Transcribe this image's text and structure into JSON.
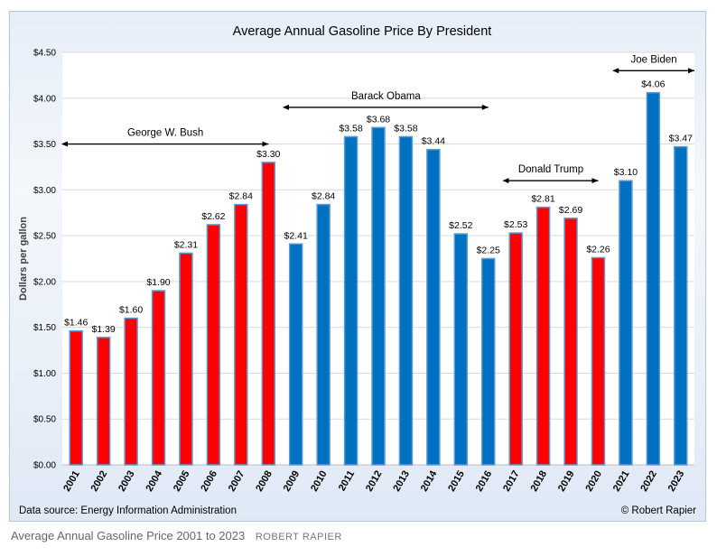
{
  "chart_data": {
    "type": "bar",
    "title": "Average Annual Gasoline Price By President",
    "ylabel": "Dollars per gallon",
    "xlabel": "",
    "ylim": [
      0,
      4.5
    ],
    "y_ticks": [
      "$0.00",
      "$0.50",
      "$1.00",
      "$1.50",
      "$2.00",
      "$2.50",
      "$3.00",
      "$3.50",
      "$4.00",
      "$4.50"
    ],
    "y_tick_values": [
      0,
      0.5,
      1,
      1.5,
      2,
      2.5,
      3,
      3.5,
      4,
      4.5
    ],
    "grid": true,
    "categories": [
      "2001",
      "2002",
      "2003",
      "2004",
      "2005",
      "2006",
      "2007",
      "2008",
      "2009",
      "2010",
      "2011",
      "2012",
      "2013",
      "2014",
      "2015",
      "2016",
      "2017",
      "2018",
      "2019",
      "2020",
      "2021",
      "2022",
      "2023"
    ],
    "values": [
      1.46,
      1.39,
      1.6,
      1.9,
      2.31,
      2.62,
      2.84,
      3.3,
      2.41,
      2.84,
      3.58,
      3.68,
      3.58,
      3.44,
      2.52,
      2.25,
      2.53,
      2.81,
      2.69,
      2.26,
      3.1,
      4.06,
      3.47
    ],
    "value_labels": [
      "$1.46",
      "$1.39",
      "$1.60",
      "$1.90",
      "$2.31",
      "$2.62",
      "$2.84",
      "$3.30",
      "$2.41",
      "$2.84",
      "$3.58",
      "$3.68",
      "$3.58",
      "$3.44",
      "$2.52",
      "$2.25",
      "$2.53",
      "$2.81",
      "$2.69",
      "$2.26",
      "$3.10",
      "$4.06",
      "$3.47"
    ],
    "bar_party": [
      "R",
      "R",
      "R",
      "R",
      "R",
      "R",
      "R",
      "R",
      "D",
      "D",
      "D",
      "D",
      "D",
      "D",
      "D",
      "D",
      "R",
      "R",
      "R",
      "R",
      "D",
      "D",
      "D"
    ],
    "colors": {
      "R": "#ff0000",
      "D": "#0070c0",
      "bar_edge": "#5b9bd5",
      "grid": "#d9d9d9"
    },
    "annotations": [
      {
        "label": "George W. Bush",
        "from": "2001",
        "to": "2008",
        "level": 3.5
      },
      {
        "label": "Barack Obama",
        "from": "2009",
        "to": "2016",
        "level": 3.9
      },
      {
        "label": "Donald Trump",
        "from": "2017",
        "to": "2020",
        "level": 3.1
      },
      {
        "label": "Joe Biden",
        "from": "2021",
        "to": "2023",
        "level": 4.3
      }
    ],
    "source": "Data source: Energy Information Administration",
    "copyright": "© Robert Rapier"
  },
  "caption": {
    "text": "Average Annual Gasoline Price 2001 to 2023",
    "credit": "ROBERT RAPIER"
  }
}
